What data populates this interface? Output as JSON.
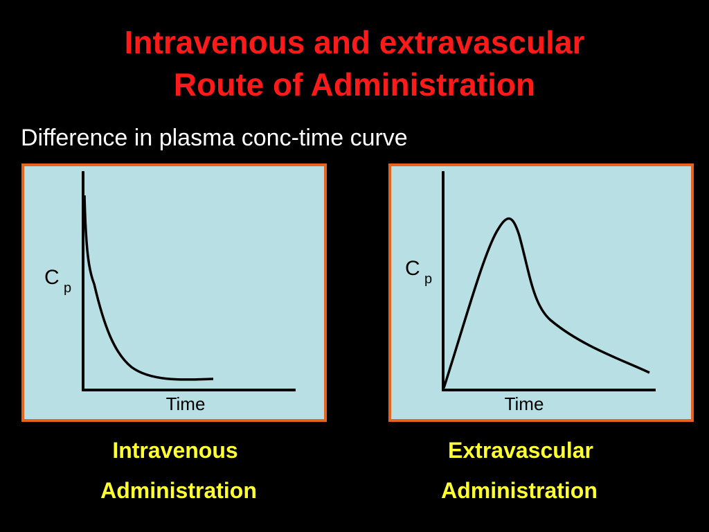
{
  "title": {
    "line1": "Intravenous and extravascular",
    "line2": "Route of Administration"
  },
  "subtitle": "Difference in plasma conc-time curve",
  "panels": [
    {
      "y_label": "C",
      "y_label_sub": "p",
      "x_label": "Time",
      "caption": [
        "Intravenous",
        "Administration"
      ]
    },
    {
      "y_label": "C",
      "y_label_sub": "p",
      "x_label": "Time",
      "caption": [
        "Extravascular",
        "Administration"
      ]
    }
  ]
}
